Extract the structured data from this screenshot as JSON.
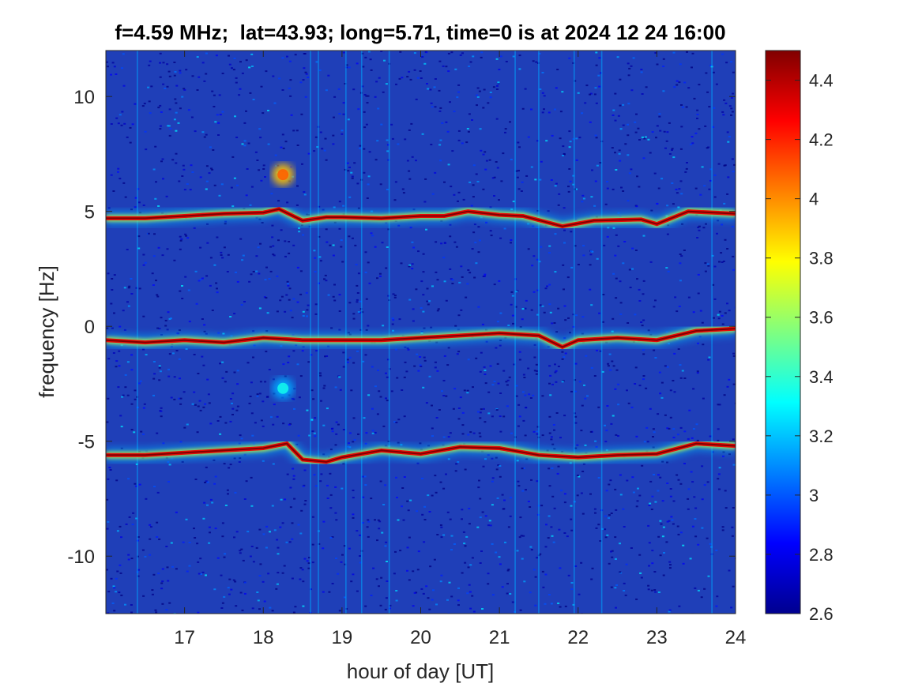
{
  "chart_data": {
    "type": "heatmap",
    "title": "f=4.59 MHz;  lat=43.93; long=5.71, time=0 is at 2024 12 24 16:00",
    "xlabel": "hour of day [UT]",
    "ylabel": "frequency [Hz]",
    "xlim": [
      16,
      24
    ],
    "ylim": [
      -12.5,
      12
    ],
    "x_ticks": [
      17,
      18,
      19,
      20,
      21,
      22,
      23,
      24
    ],
    "y_ticks": [
      -10,
      -5,
      0,
      5,
      10
    ],
    "colorbar": {
      "colormap": "jet",
      "range": [
        2.6,
        4.5
      ],
      "ticks": [
        2.6,
        2.8,
        3.0,
        3.2,
        3.4,
        3.6,
        3.8,
        4.0,
        4.2,
        4.4
      ],
      "tick_labels": [
        "2.6",
        "2.8",
        "3",
        "3.2",
        "3.4",
        "3.6",
        "3.8",
        "4",
        "4.2",
        "4.4"
      ]
    },
    "traces": [
      {
        "id": "upper",
        "points": [
          [
            16.0,
            4.7
          ],
          [
            16.5,
            4.7
          ],
          [
            17.0,
            4.8
          ],
          [
            17.5,
            4.9
          ],
          [
            18.0,
            4.95
          ],
          [
            18.2,
            5.1
          ],
          [
            18.5,
            4.6
          ],
          [
            18.8,
            4.75
          ],
          [
            19.0,
            4.75
          ],
          [
            19.5,
            4.7
          ],
          [
            20.0,
            4.8
          ],
          [
            20.3,
            4.8
          ],
          [
            20.6,
            5.0
          ],
          [
            21.0,
            4.85
          ],
          [
            21.3,
            4.8
          ],
          [
            21.8,
            4.35
          ],
          [
            22.2,
            4.6
          ],
          [
            22.8,
            4.65
          ],
          [
            23.0,
            4.45
          ],
          [
            23.4,
            5.0
          ],
          [
            24.0,
            4.9
          ]
        ]
      },
      {
        "id": "center",
        "points": [
          [
            16.0,
            -0.6
          ],
          [
            16.5,
            -0.7
          ],
          [
            17.0,
            -0.6
          ],
          [
            17.5,
            -0.7
          ],
          [
            18.0,
            -0.5
          ],
          [
            18.5,
            -0.6
          ],
          [
            19.0,
            -0.6
          ],
          [
            19.5,
            -0.6
          ],
          [
            20.0,
            -0.5
          ],
          [
            20.5,
            -0.4
          ],
          [
            21.0,
            -0.3
          ],
          [
            21.5,
            -0.4
          ],
          [
            21.8,
            -0.9
          ],
          [
            22.0,
            -0.6
          ],
          [
            22.5,
            -0.5
          ],
          [
            23.0,
            -0.6
          ],
          [
            23.5,
            -0.2
          ],
          [
            24.0,
            -0.1
          ]
        ]
      },
      {
        "id": "lower",
        "points": [
          [
            16.0,
            -5.6
          ],
          [
            16.5,
            -5.6
          ],
          [
            17.0,
            -5.5
          ],
          [
            17.5,
            -5.4
          ],
          [
            18.0,
            -5.3
          ],
          [
            18.3,
            -5.1
          ],
          [
            18.5,
            -5.8
          ],
          [
            18.8,
            -5.9
          ],
          [
            19.0,
            -5.7
          ],
          [
            19.5,
            -5.4
          ],
          [
            20.0,
            -5.55
          ],
          [
            20.5,
            -5.25
          ],
          [
            21.0,
            -5.3
          ],
          [
            21.5,
            -5.6
          ],
          [
            22.0,
            -5.7
          ],
          [
            22.5,
            -5.6
          ],
          [
            23.0,
            -5.55
          ],
          [
            23.5,
            -5.1
          ],
          [
            24.0,
            -5.2
          ]
        ]
      }
    ],
    "blobs": [
      {
        "x": 18.25,
        "y": 6.6,
        "value": 3.9
      },
      {
        "x": 18.25,
        "y": -2.7,
        "value": 3.15
      }
    ],
    "vertical_streaks": [
      16.4,
      18.6,
      18.7,
      19.05,
      19.25,
      19.6,
      21.2,
      21.5,
      21.95,
      22.3,
      23.7
    ]
  }
}
